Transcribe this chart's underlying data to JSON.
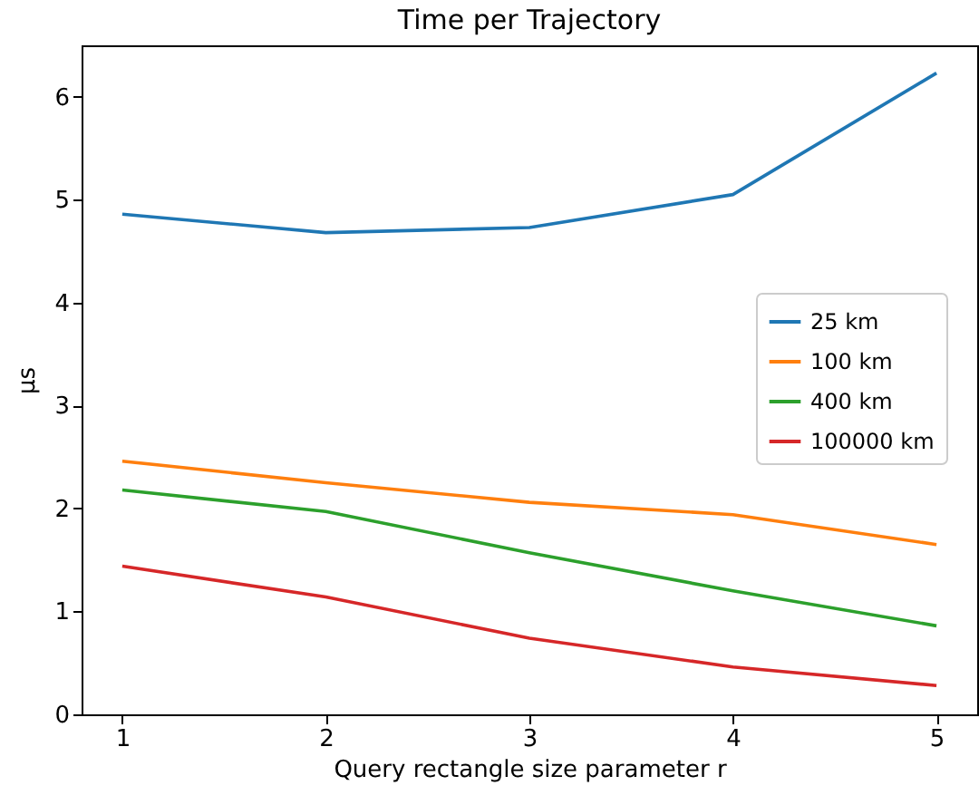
{
  "chart_data": {
    "type": "line",
    "title": "Time per Trajectory",
    "xlabel": "Query rectangle size parameter r",
    "ylabel": "μs",
    "x": [
      1,
      2,
      3,
      4,
      5
    ],
    "series": [
      {
        "name": "25 km",
        "color": "#1f77b4",
        "values": [
          4.86,
          4.68,
          4.73,
          5.05,
          6.23
        ]
      },
      {
        "name": "100 km",
        "color": "#ff7f0e",
        "values": [
          2.46,
          2.25,
          2.06,
          1.94,
          1.65
        ]
      },
      {
        "name": "400 km",
        "color": "#2ca02c",
        "values": [
          2.18,
          1.97,
          1.57,
          1.2,
          0.86
        ]
      },
      {
        "name": "100000 km",
        "color": "#d62728",
        "values": [
          1.44,
          1.14,
          0.74,
          0.46,
          0.28
        ]
      }
    ],
    "xlim": [
      0.8,
      5.2
    ],
    "xticks": [
      1,
      2,
      3,
      4,
      5
    ],
    "ylim": [
      0,
      6.5
    ],
    "yticks": [
      0,
      1,
      2,
      3,
      4,
      5,
      6
    ],
    "grid": false,
    "legend": "center right",
    "marker": "none",
    "line_style": "solid"
  }
}
